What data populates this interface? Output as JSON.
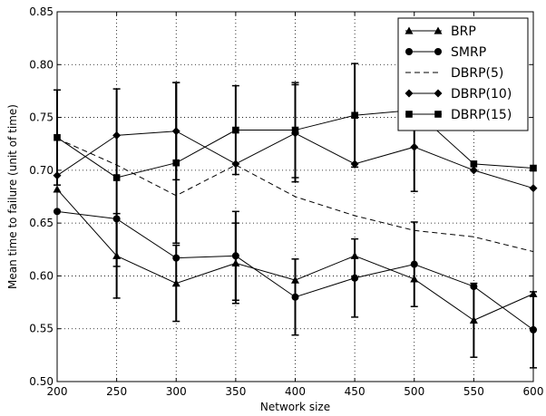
{
  "chart_data": {
    "type": "line",
    "title": "",
    "xlabel": "Network size",
    "ylabel": "Mean time to failure (unit of time)",
    "xlim": [
      200,
      600
    ],
    "ylim": [
      0.5,
      0.85
    ],
    "xticks": [
      200,
      250,
      300,
      350,
      400,
      450,
      500,
      550,
      600
    ],
    "yticks": [
      0.5,
      0.55,
      0.6,
      0.65,
      0.7,
      0.75,
      0.8,
      0.85
    ],
    "xtick_labels": [
      "200",
      "250",
      "300",
      "350",
      "400",
      "450",
      "500",
      "550",
      "600"
    ],
    "ytick_labels": [
      "0.50",
      "0.55",
      "0.60",
      "0.65",
      "0.70",
      "0.75",
      "0.80",
      "0.85"
    ],
    "grid": true,
    "legend_position": "top-right",
    "x": [
      200,
      250,
      300,
      350,
      400,
      450,
      500,
      550,
      600
    ],
    "series": [
      {
        "name": "BRP",
        "marker": "triangle",
        "line": "solid",
        "values": [
          0.682,
          0.619,
          0.593,
          0.612,
          0.596,
          0.619,
          0.597,
          0.558,
          0.583
        ],
        "errors": [
          null,
          0.04,
          0.036,
          0.038,
          null,
          null,
          null,
          0.035,
          null
        ]
      },
      {
        "name": "SMRP",
        "marker": "circle",
        "line": "solid",
        "values": [
          0.661,
          0.654,
          0.617,
          0.619,
          0.58,
          0.598,
          0.611,
          0.59,
          0.549
        ],
        "errors": [
          null,
          null,
          null,
          0.042,
          0.036,
          0.037,
          0.04,
          null,
          0.036
        ]
      },
      {
        "name": "DBRP(5)",
        "marker": "none",
        "line": "dashed",
        "values": [
          0.73,
          0.705,
          0.676,
          0.705,
          0.675,
          0.657,
          0.643,
          0.637,
          0.623
        ],
        "errors": []
      },
      {
        "name": "DBRP(10)",
        "marker": "diamond",
        "line": "solid",
        "values": [
          0.695,
          0.733,
          0.737,
          0.706,
          0.735,
          0.706,
          0.722,
          0.7,
          0.683
        ],
        "errors": [
          null,
          null,
          0.046,
          null,
          0.046,
          null,
          null,
          null,
          null
        ]
      },
      {
        "name": "DBRP(15)",
        "marker": "square",
        "line": "solid",
        "values": [
          0.731,
          0.693,
          0.707,
          0.738,
          0.738,
          0.752,
          0.757,
          0.706,
          0.702
        ],
        "errors": [
          0.045,
          0.084,
          0.076,
          0.042,
          0.045,
          0.049,
          0.077,
          null,
          null
        ]
      }
    ]
  }
}
